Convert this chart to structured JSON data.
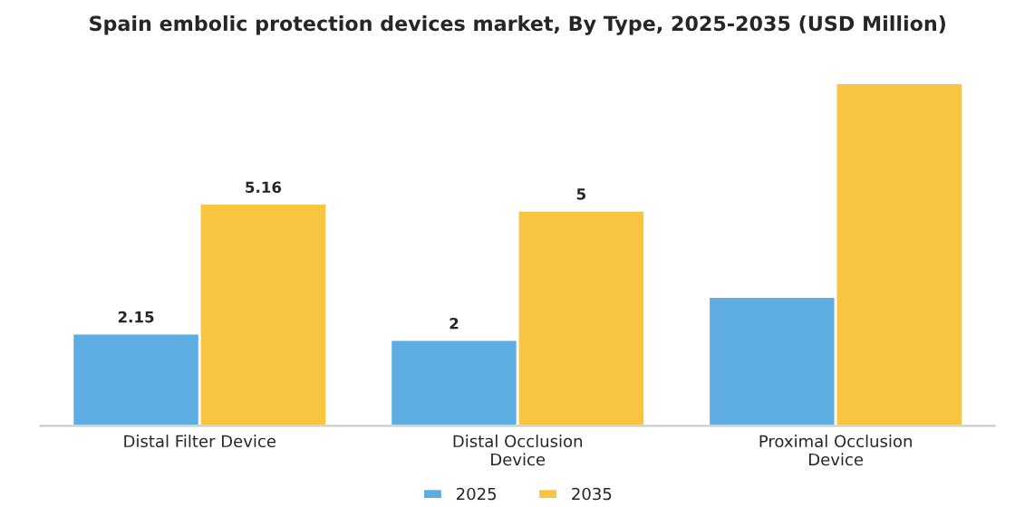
{
  "chart_data": {
    "type": "bar",
    "title": "Spain embolic protection devices market, By Type, 2025-2035 (USD Million)",
    "categories": [
      "Distal Filter Device",
      "Distal Occlusion\nDevice",
      "Proximal Occlusion\nDevice"
    ],
    "series": [
      {
        "name": "2025",
        "color": "#5dade2",
        "values": [
          2.15,
          2,
          3.0
        ],
        "value_labels": [
          "2.15",
          "2",
          null
        ]
      },
      {
        "name": "2035",
        "color": "#f9c440",
        "values": [
          5.16,
          5,
          7.95
        ],
        "value_labels": [
          "5.16",
          "5",
          null
        ]
      }
    ],
    "tick_labels": "x",
    "grid": false,
    "legend": "bottom"
  }
}
